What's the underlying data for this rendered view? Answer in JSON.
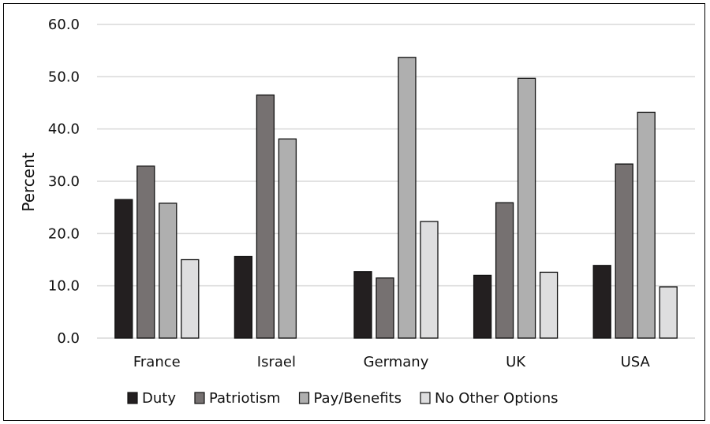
{
  "chart_data": {
    "type": "bar",
    "title": "",
    "xlabel": "",
    "ylabel": "Percent",
    "ylim": [
      0,
      60
    ],
    "ytick_step": 10,
    "grid": true,
    "legend_position": "bottom",
    "categories": [
      "France",
      "Israel",
      "Germany",
      "UK",
      "USA"
    ],
    "series": [
      {
        "name": "Duty",
        "color": "#231f20",
        "values": [
          26.5,
          15.6,
          12.7,
          12.0,
          13.9
        ]
      },
      {
        "name": "Patriotism",
        "color": "#767171",
        "values": [
          32.9,
          46.5,
          11.5,
          25.9,
          33.3
        ]
      },
      {
        "name": "Pay/Benefits",
        "color": "#afafaf",
        "values": [
          25.8,
          38.1,
          53.7,
          49.7,
          43.2
        ]
      },
      {
        "name": "No Other Options",
        "color": "#dededf",
        "values": [
          15.0,
          null,
          22.3,
          12.6,
          9.8
        ]
      }
    ]
  }
}
